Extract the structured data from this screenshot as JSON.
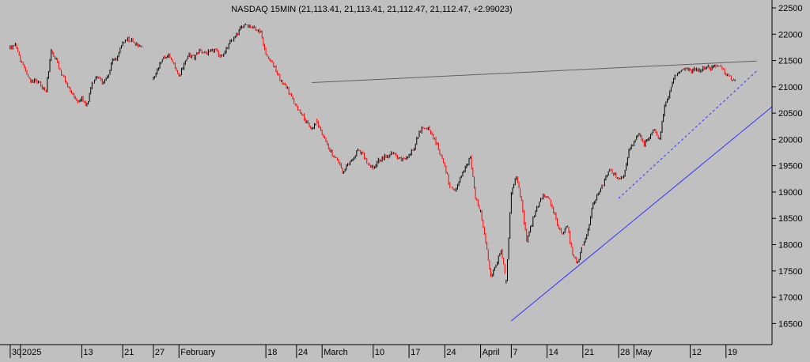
{
  "chart_data": {
    "type": "candlestick",
    "title": "NASDAQ 15MIN (21,113.41, 21,113.41, 21,112.47, 21,112.47, +2.99023)",
    "symbol": "NASDAQ",
    "interval": "15MIN",
    "last_bar": {
      "open": 21113.41,
      "high": 21113.41,
      "low": 21112.47,
      "close": 21112.47,
      "change": 2.99023
    },
    "ylim": [
      16100,
      22650
    ],
    "y_ticks": [
      16500,
      17000,
      17500,
      18000,
      18500,
      19000,
      19500,
      20000,
      20500,
      21000,
      21500,
      22000,
      22500
    ],
    "y_tick_labels": [
      "16500",
      "17000",
      "17500",
      "18000",
      "18500",
      "19000",
      "19500",
      "20000",
      "20500",
      "21000",
      "21500",
      "22000",
      "22500"
    ],
    "x_labels": [
      "30",
      "2025",
      "13",
      "21",
      "27",
      "February",
      "18",
      "24",
      "March",
      "10",
      "17",
      "24",
      "April",
      "7",
      "14",
      "21",
      "28",
      "May",
      "12",
      "19"
    ],
    "x_label_days": [
      0,
      2,
      14,
      22,
      28,
      33,
      50,
      56,
      61,
      71,
      78,
      85,
      92,
      98,
      105,
      112,
      119,
      122,
      133,
      140
    ],
    "x_range_days": [
      -2,
      149
    ],
    "price_path": [
      [
        0,
        21750
      ],
      [
        1,
        21780
      ],
      [
        2,
        21500
      ],
      [
        3,
        21300
      ],
      [
        4,
        21100
      ],
      [
        5,
        21150
      ],
      [
        6,
        21000
      ],
      [
        7,
        20950
      ],
      [
        8,
        21680
      ],
      [
        9,
        21500
      ],
      [
        10,
        21250
      ],
      [
        11,
        21050
      ],
      [
        12,
        20900
      ],
      [
        13,
        20700
      ],
      [
        14,
        20780
      ],
      [
        15,
        20650
      ],
      [
        16,
        21050
      ],
      [
        17,
        21200
      ],
      [
        18,
        21100
      ],
      [
        19,
        21180
      ],
      [
        20,
        21500
      ],
      [
        21,
        21550
      ],
      [
        22,
        21850
      ],
      [
        23,
        21920
      ],
      [
        24,
        21870
      ],
      [
        25,
        21800
      ],
      [
        26,
        21750
      ],
      [
        28,
        21150
      ],
      [
        29,
        21350
      ],
      [
        30,
        21550
      ],
      [
        31,
        21600
      ],
      [
        32,
        21450
      ],
      [
        33,
        21200
      ],
      [
        34,
        21450
      ],
      [
        35,
        21600
      ],
      [
        36,
        21550
      ],
      [
        37,
        21700
      ],
      [
        38,
        21650
      ],
      [
        39,
        21650
      ],
      [
        40,
        21700
      ],
      [
        41,
        21600
      ],
      [
        42,
        21650
      ],
      [
        43,
        21850
      ],
      [
        44,
        21950
      ],
      [
        45,
        22100
      ],
      [
        46,
        22200
      ],
      [
        47,
        22150
      ],
      [
        48,
        22100
      ],
      [
        49,
        22050
      ],
      [
        50,
        21600
      ],
      [
        51,
        21500
      ],
      [
        52,
        21300
      ],
      [
        53,
        21100
      ],
      [
        54,
        21000
      ],
      [
        55,
        20800
      ],
      [
        56,
        20600
      ],
      [
        57,
        20500
      ],
      [
        58,
        20300
      ],
      [
        59,
        20200
      ],
      [
        60,
        20350
      ],
      [
        61,
        20100
      ],
      [
        62,
        19900
      ],
      [
        63,
        19700
      ],
      [
        64,
        19600
      ],
      [
        65,
        19400
      ],
      [
        66,
        19500
      ],
      [
        67,
        19650
      ],
      [
        68,
        19800
      ],
      [
        69,
        19700
      ],
      [
        70,
        19500
      ],
      [
        71,
        19450
      ],
      [
        72,
        19600
      ],
      [
        73,
        19650
      ],
      [
        74,
        19700
      ],
      [
        75,
        19750
      ],
      [
        76,
        19650
      ],
      [
        77,
        19600
      ],
      [
        78,
        19700
      ],
      [
        79,
        19850
      ],
      [
        80,
        20150
      ],
      [
        81,
        20250
      ],
      [
        82,
        20200
      ],
      [
        83,
        20000
      ],
      [
        84,
        19750
      ],
      [
        85,
        19500
      ],
      [
        86,
        19100
      ],
      [
        87,
        19000
      ],
      [
        88,
        19250
      ],
      [
        89,
        19450
      ],
      [
        90,
        19650
      ],
      [
        91,
        18900
      ],
      [
        92,
        18600
      ],
      [
        93,
        18050
      ],
      [
        94,
        17400
      ],
      [
        95,
        17600
      ],
      [
        96,
        17900
      ],
      [
        97,
        17300
      ],
      [
        98,
        19000
      ],
      [
        99,
        19300
      ],
      [
        100,
        18800
      ],
      [
        101,
        18100
      ],
      [
        102,
        18400
      ],
      [
        103,
        18700
      ],
      [
        104,
        18900
      ],
      [
        105,
        18950
      ],
      [
        106,
        18700
      ],
      [
        107,
        18400
      ],
      [
        108,
        18200
      ],
      [
        109,
        18350
      ],
      [
        110,
        17800
      ],
      [
        111,
        17650
      ],
      [
        112,
        18000
      ],
      [
        113,
        18300
      ],
      [
        114,
        18750
      ],
      [
        115,
        18950
      ],
      [
        116,
        19150
      ],
      [
        117,
        19400
      ],
      [
        118,
        19350
      ],
      [
        119,
        19250
      ],
      [
        120,
        19300
      ],
      [
        121,
        19800
      ],
      [
        122,
        19950
      ],
      [
        123,
        20100
      ],
      [
        124,
        19900
      ],
      [
        125,
        20050
      ],
      [
        126,
        20200
      ],
      [
        127,
        20000
      ],
      [
        128,
        20650
      ],
      [
        129,
        20900
      ],
      [
        130,
        21200
      ],
      [
        131,
        21300
      ],
      [
        132,
        21350
      ],
      [
        133,
        21300
      ],
      [
        134,
        21350
      ],
      [
        135,
        21300
      ],
      [
        136,
        21400
      ],
      [
        137,
        21350
      ],
      [
        138,
        21420
      ],
      [
        139,
        21350
      ],
      [
        140,
        21250
      ],
      [
        141,
        21150
      ],
      [
        142,
        21110
      ]
    ],
    "gaps_after_day": [
      26,
      32,
      53,
      60,
      90,
      92,
      97,
      112,
      120,
      127
    ],
    "trendlines": [
      {
        "from": [
          59,
          21080
        ],
        "to": [
          146,
          21490
        ],
        "color": "#606060",
        "style": "solid"
      },
      {
        "from": [
          98,
          16550
        ],
        "to": [
          149,
          20620
        ],
        "color": "#3333ff",
        "style": "solid"
      },
      {
        "from": [
          119,
          18880
        ],
        "to": [
          146,
          21300
        ],
        "color": "#3333ff",
        "style": "dashed"
      }
    ],
    "candle_up_color": "#000000",
    "candle_down_color": "#ff0000",
    "background_color": "#c0c0c0",
    "grid": false,
    "legend": "none"
  }
}
